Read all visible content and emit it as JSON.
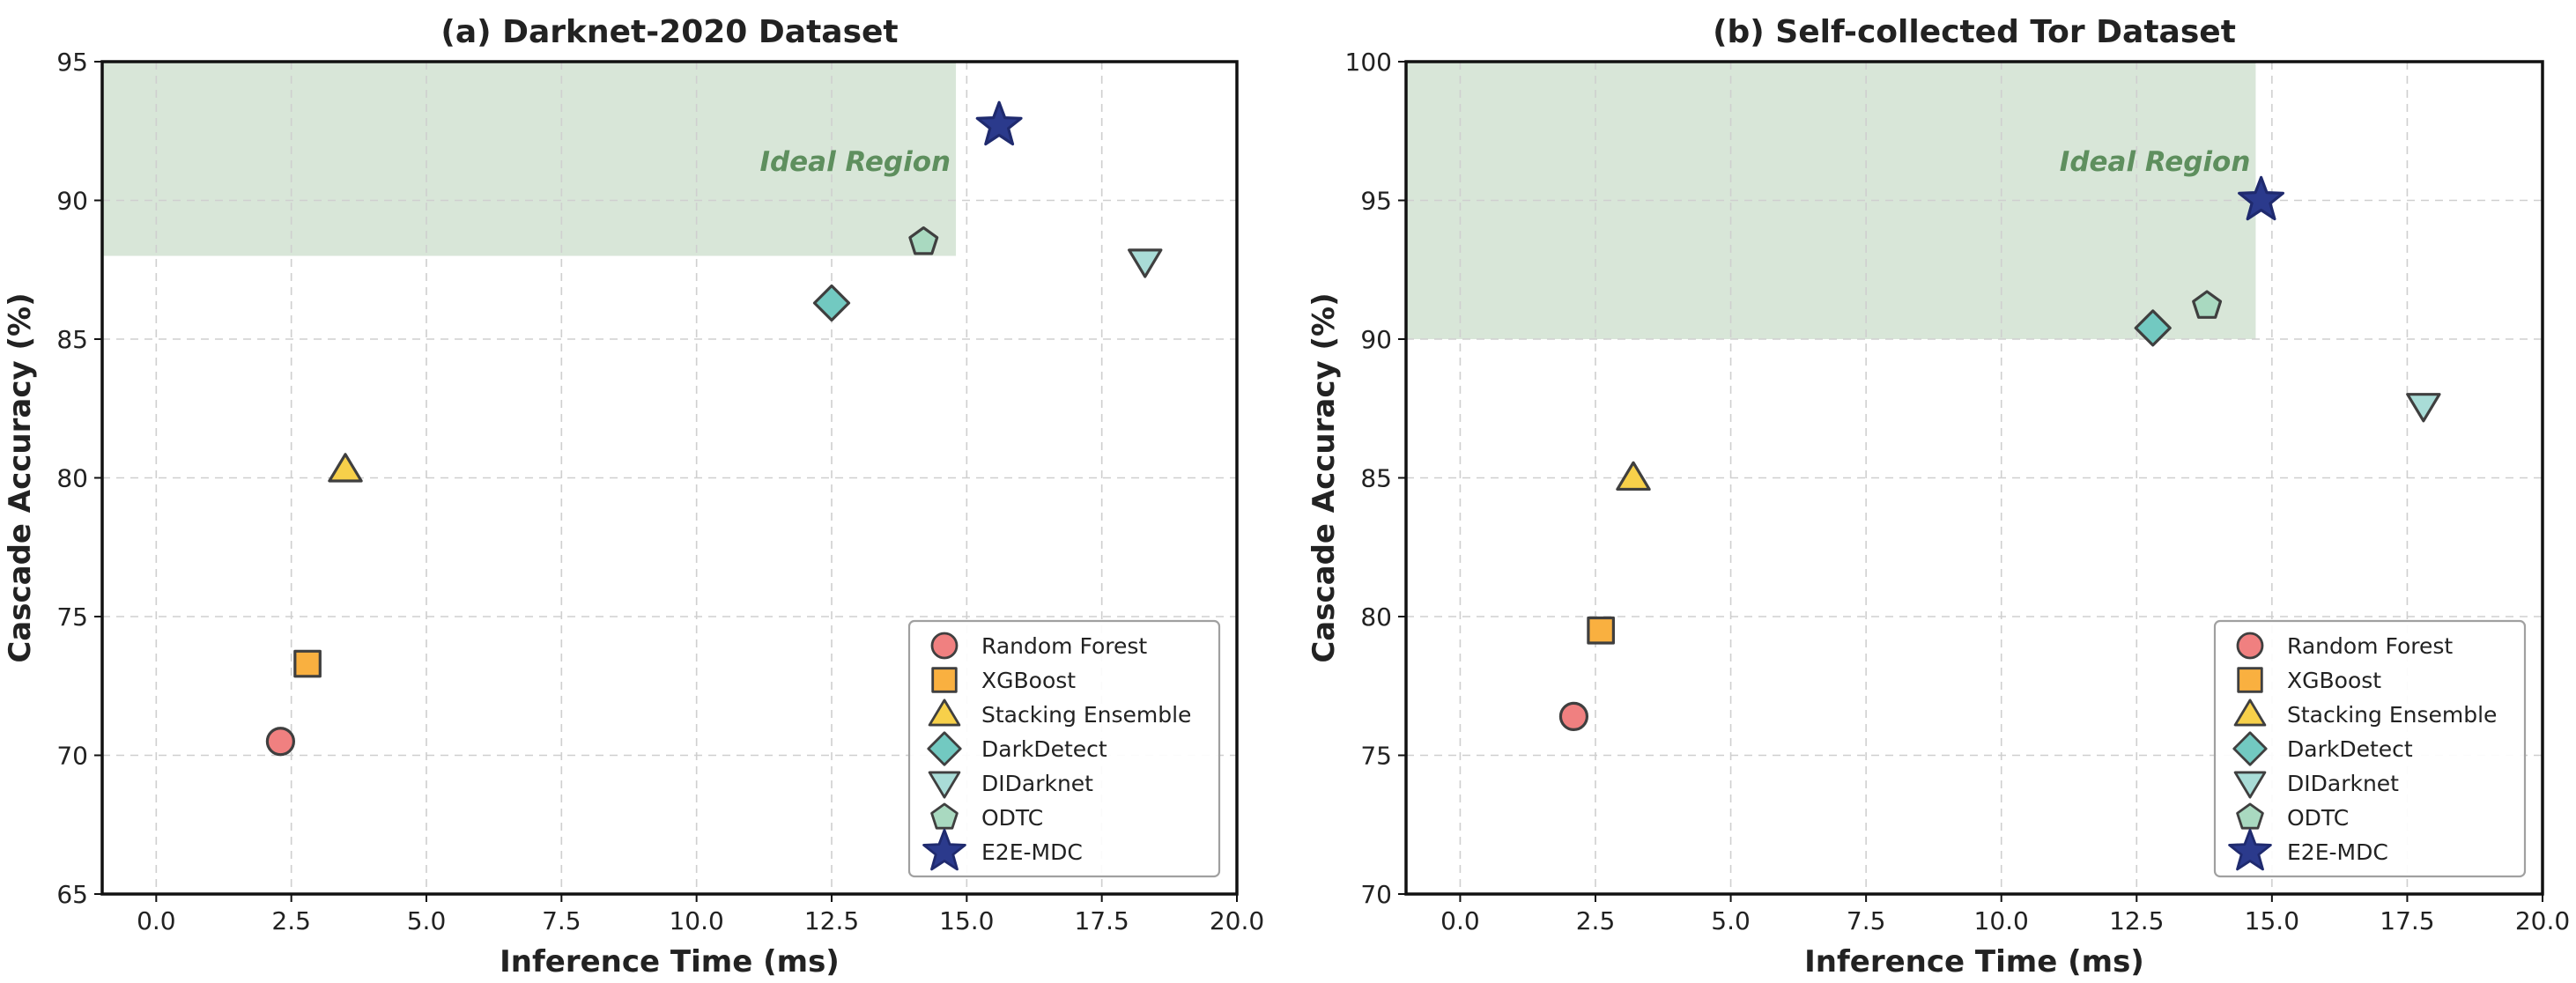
{
  "chart_data": [
    {
      "type": "scatter",
      "title": "(a) Darknet-2020 Dataset",
      "xlabel": "Inference Time (ms)",
      "ylabel": "Cascade Accuracy (%)",
      "xlim": [
        -1,
        20
      ],
      "ylim": [
        65,
        95
      ],
      "xticks": [
        0.0,
        2.5,
        5.0,
        7.5,
        10.0,
        12.5,
        15.0,
        17.5,
        20.0
      ],
      "xtick_labels": [
        "0.0",
        "2.5",
        "5.0",
        "7.5",
        "10.0",
        "12.5",
        "15.0",
        "17.5",
        "20.0"
      ],
      "yticks": [
        65,
        70,
        75,
        80,
        85,
        90,
        95
      ],
      "ytick_labels": [
        "65",
        "70",
        "75",
        "80",
        "85",
        "90",
        "95"
      ],
      "grid": true,
      "legend_position": "bottom-right",
      "ideal_region": {
        "label": "Ideal Region",
        "x": [
          -1,
          14.8
        ],
        "y": [
          88,
          95
        ],
        "color": "#d8e6d8"
      },
      "series": [
        {
          "name": "Random Forest",
          "marker": "circle",
          "color": "#f08080",
          "x": 2.3,
          "y": 70.5
        },
        {
          "name": "XGBoost",
          "marker": "square",
          "color": "#f9b040",
          "x": 2.8,
          "y": 73.3
        },
        {
          "name": "Stacking Ensemble",
          "marker": "triangle-up",
          "color": "#f7d04a",
          "x": 3.5,
          "y": 80.3
        },
        {
          "name": "DarkDetect",
          "marker": "diamond",
          "color": "#72c9c1",
          "x": 12.5,
          "y": 86.3
        },
        {
          "name": "DIDarknet",
          "marker": "triangle-down",
          "color": "#a9dcd7",
          "x": 18.3,
          "y": 87.8
        },
        {
          "name": "ODTC",
          "marker": "pentagon",
          "color": "#a9d9c0",
          "x": 14.2,
          "y": 88.5
        },
        {
          "name": "E2E-MDC",
          "marker": "star",
          "color": "#2b3a8c",
          "x": 15.6,
          "y": 92.7
        }
      ]
    },
    {
      "type": "scatter",
      "title": "(b) Self-collected Tor Dataset",
      "xlabel": "Inference Time (ms)",
      "ylabel": "Cascade Accuracy (%)",
      "xlim": [
        -1,
        20
      ],
      "ylim": [
        70,
        100
      ],
      "xticks": [
        0.0,
        2.5,
        5.0,
        7.5,
        10.0,
        12.5,
        15.0,
        17.5,
        20.0
      ],
      "xtick_labels": [
        "0.0",
        "2.5",
        "5.0",
        "7.5",
        "10.0",
        "12.5",
        "15.0",
        "17.5",
        "20.0"
      ],
      "yticks": [
        70,
        75,
        80,
        85,
        90,
        95,
        100
      ],
      "ytick_labels": [
        "70",
        "75",
        "80",
        "85",
        "90",
        "95",
        "100"
      ],
      "grid": true,
      "legend_position": "bottom-right",
      "ideal_region": {
        "label": "Ideal Region",
        "x": [
          -1,
          14.7
        ],
        "y": [
          90,
          100
        ],
        "color": "#d8e6d8"
      },
      "series": [
        {
          "name": "Random Forest",
          "marker": "circle",
          "color": "#f08080",
          "x": 2.1,
          "y": 76.4
        },
        {
          "name": "XGBoost",
          "marker": "square",
          "color": "#f9b040",
          "x": 2.6,
          "y": 79.5
        },
        {
          "name": "Stacking Ensemble",
          "marker": "triangle-up",
          "color": "#f7d04a",
          "x": 3.2,
          "y": 85.0
        },
        {
          "name": "DarkDetect",
          "marker": "diamond",
          "color": "#72c9c1",
          "x": 12.8,
          "y": 90.4
        },
        {
          "name": "DIDarknet",
          "marker": "triangle-down",
          "color": "#a9dcd7",
          "x": 17.8,
          "y": 87.6
        },
        {
          "name": "ODTC",
          "marker": "pentagon",
          "color": "#a9d9c0",
          "x": 13.8,
          "y": 91.2
        },
        {
          "name": "E2E-MDC",
          "marker": "star",
          "color": "#2b3a8c",
          "x": 14.8,
          "y": 95.0
        }
      ]
    }
  ]
}
